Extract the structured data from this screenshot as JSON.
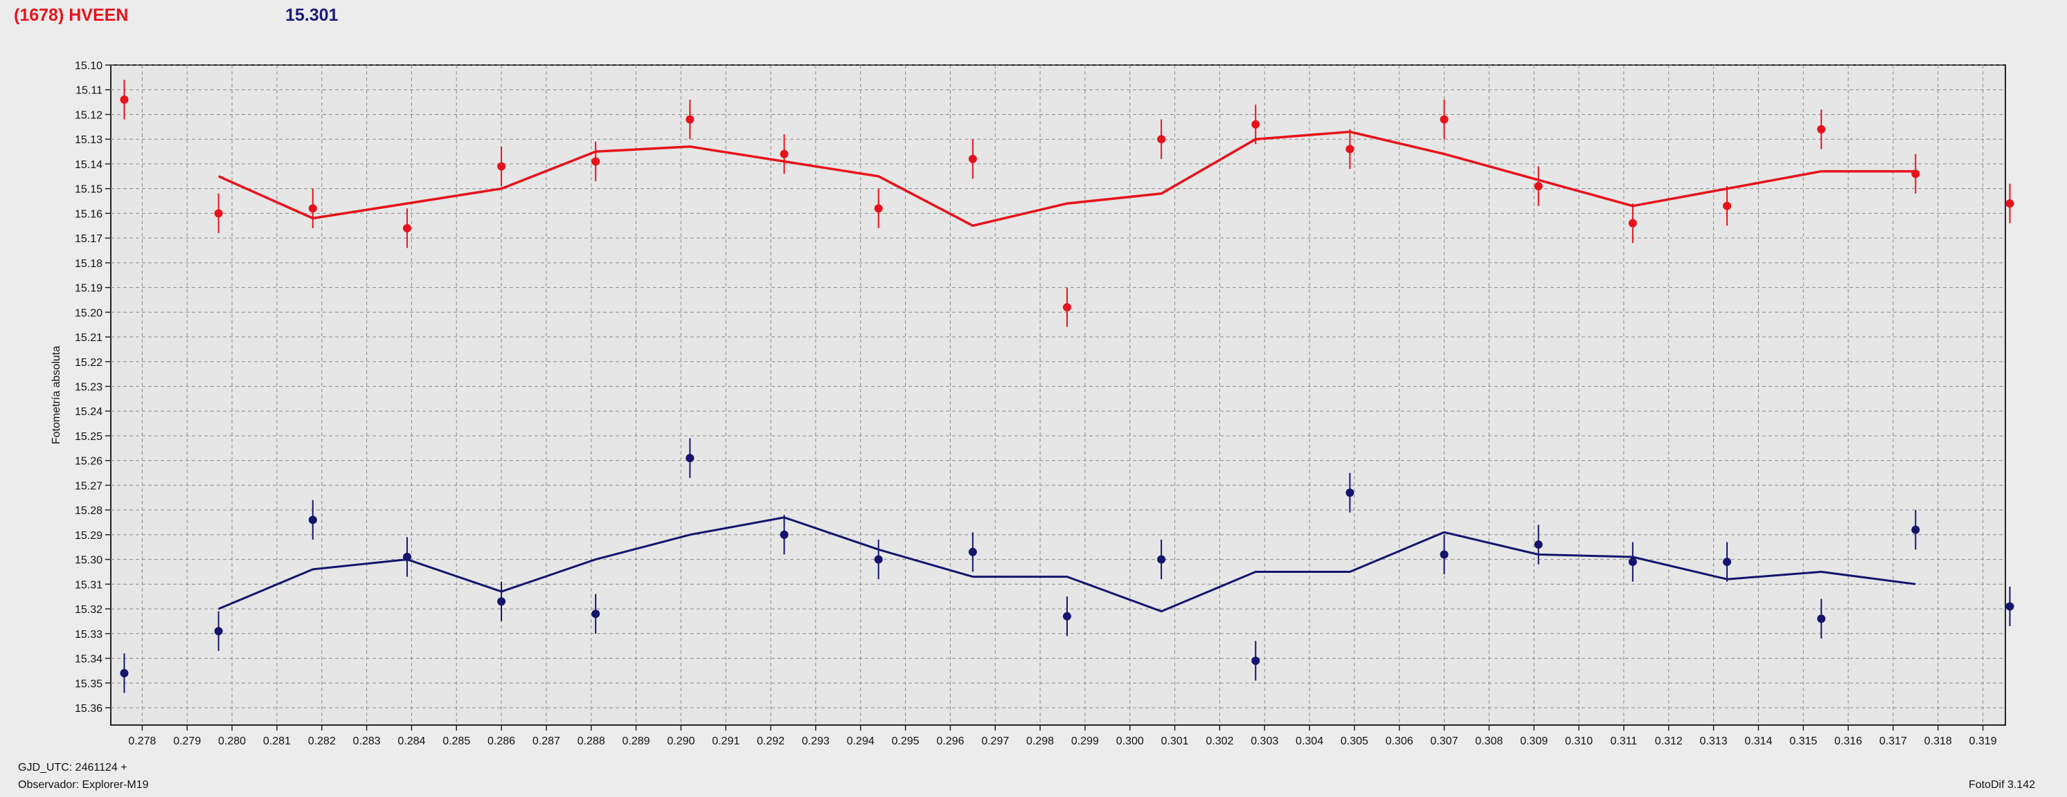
{
  "header": {
    "object_name": "(1678) HVEEN",
    "reference_mag": "15.301"
  },
  "footer": {
    "gjd_line": "GJD_UTC: 2461124 +",
    "observer_line": "Observador: Explorer-M19",
    "software": "FotoDif 3.142"
  },
  "colors": {
    "series_red": "#e8121b",
    "series_blue": "#14146e",
    "plot_bg": "#e6e6e6",
    "grid": "#8a8a8a"
  },
  "chart_data": {
    "type": "scatter",
    "ylabel": "Fotometría absoluta",
    "xlabel": "",
    "xlim": [
      0.2773,
      0.3195
    ],
    "ylim": [
      15.1,
      15.367
    ],
    "y_inverted": true,
    "grid": true,
    "x_ticks": [
      "0.278",
      "0.279",
      "0.280",
      "0.281",
      "0.282",
      "0.283",
      "0.284",
      "0.285",
      "0.286",
      "0.287",
      "0.288",
      "0.289",
      "0.290",
      "0.291",
      "0.292",
      "0.293",
      "0.294",
      "0.295",
      "0.296",
      "0.297",
      "0.298",
      "0.299",
      "0.300",
      "0.301",
      "0.302",
      "0.303",
      "0.304",
      "0.305",
      "0.306",
      "0.307",
      "0.308",
      "0.309",
      "0.310",
      "0.311",
      "0.312",
      "0.313",
      "0.314",
      "0.315",
      "0.316",
      "0.317",
      "0.318",
      "0.319"
    ],
    "y_ticks": [
      "15.10",
      "15.11",
      "15.12",
      "15.13",
      "15.14",
      "15.15",
      "15.16",
      "15.17",
      "15.18",
      "15.19",
      "15.20",
      "15.21",
      "15.22",
      "15.23",
      "15.24",
      "15.25",
      "15.26",
      "15.27",
      "15.28",
      "15.29",
      "15.30",
      "15.31",
      "15.32",
      "15.33",
      "15.34",
      "15.35",
      "15.36"
    ],
    "series": [
      {
        "color": "#e8121b",
        "points": [
          {
            "x": 0.2776,
            "y": 15.114,
            "err": 0.008
          },
          {
            "x": 0.2797,
            "y": 15.16,
            "err": 0.008
          },
          {
            "x": 0.2818,
            "y": 15.158,
            "err": 0.008
          },
          {
            "x": 0.2839,
            "y": 15.166,
            "err": 0.008
          },
          {
            "x": 0.286,
            "y": 15.141,
            "err": 0.008
          },
          {
            "x": 0.2881,
            "y": 15.139,
            "err": 0.008
          },
          {
            "x": 0.2902,
            "y": 15.122,
            "err": 0.008
          },
          {
            "x": 0.2923,
            "y": 15.136,
            "err": 0.008
          },
          {
            "x": 0.2944,
            "y": 15.158,
            "err": 0.008
          },
          {
            "x": 0.2965,
            "y": 15.138,
            "err": 0.008
          },
          {
            "x": 0.2986,
            "y": 15.198,
            "err": 0.008
          },
          {
            "x": 0.3007,
            "y": 15.13,
            "err": 0.008
          },
          {
            "x": 0.3028,
            "y": 15.124,
            "err": 0.008
          },
          {
            "x": 0.3049,
            "y": 15.134,
            "err": 0.008
          },
          {
            "x": 0.307,
            "y": 15.122,
            "err": 0.008
          },
          {
            "x": 0.3091,
            "y": 15.149,
            "err": 0.008
          },
          {
            "x": 0.3112,
            "y": 15.164,
            "err": 0.008
          },
          {
            "x": 0.3133,
            "y": 15.157,
            "err": 0.008
          },
          {
            "x": 0.3154,
            "y": 15.126,
            "err": 0.008
          },
          {
            "x": 0.3175,
            "y": 15.144,
            "err": 0.008
          },
          {
            "x": 0.3196,
            "y": 15.156,
            "err": 0.008
          }
        ],
        "line": [
          {
            "x": 0.2797,
            "y": 15.145
          },
          {
            "x": 0.2818,
            "y": 15.162
          },
          {
            "x": 0.286,
            "y": 15.15
          },
          {
            "x": 0.2881,
            "y": 15.135
          },
          {
            "x": 0.2902,
            "y": 15.133
          },
          {
            "x": 0.2944,
            "y": 15.145
          },
          {
            "x": 0.2965,
            "y": 15.165
          },
          {
            "x": 0.2986,
            "y": 15.156
          },
          {
            "x": 0.3007,
            "y": 15.152
          },
          {
            "x": 0.3028,
            "y": 15.13
          },
          {
            "x": 0.3049,
            "y": 15.127
          },
          {
            "x": 0.307,
            "y": 15.136
          },
          {
            "x": 0.3112,
            "y": 15.157
          },
          {
            "x": 0.3133,
            "y": 15.15
          },
          {
            "x": 0.3154,
            "y": 15.143
          },
          {
            "x": 0.3175,
            "y": 15.143
          }
        ]
      },
      {
        "color": "#14146e",
        "points": [
          {
            "x": 0.2776,
            "y": 15.346,
            "err": 0.008
          },
          {
            "x": 0.2797,
            "y": 15.329,
            "err": 0.008
          },
          {
            "x": 0.2818,
            "y": 15.284,
            "err": 0.008
          },
          {
            "x": 0.2839,
            "y": 15.299,
            "err": 0.008
          },
          {
            "x": 0.286,
            "y": 15.317,
            "err": 0.008
          },
          {
            "x": 0.2881,
            "y": 15.322,
            "err": 0.008
          },
          {
            "x": 0.2902,
            "y": 15.259,
            "err": 0.008
          },
          {
            "x": 0.2923,
            "y": 15.29,
            "err": 0.008
          },
          {
            "x": 0.2944,
            "y": 15.3,
            "err": 0.008
          },
          {
            "x": 0.2965,
            "y": 15.297,
            "err": 0.008
          },
          {
            "x": 0.2986,
            "y": 15.323,
            "err": 0.008
          },
          {
            "x": 0.3007,
            "y": 15.3,
            "err": 0.008
          },
          {
            "x": 0.3028,
            "y": 15.341,
            "err": 0.008
          },
          {
            "x": 0.3049,
            "y": 15.273,
            "err": 0.008
          },
          {
            "x": 0.307,
            "y": 15.298,
            "err": 0.008
          },
          {
            "x": 0.3091,
            "y": 15.294,
            "err": 0.008
          },
          {
            "x": 0.3112,
            "y": 15.301,
            "err": 0.008
          },
          {
            "x": 0.3133,
            "y": 15.301,
            "err": 0.008
          },
          {
            "x": 0.3154,
            "y": 15.324,
            "err": 0.008
          },
          {
            "x": 0.3175,
            "y": 15.288,
            "err": 0.008
          },
          {
            "x": 0.3196,
            "y": 15.319,
            "err": 0.008
          }
        ],
        "line": [
          {
            "x": 0.2797,
            "y": 15.32
          },
          {
            "x": 0.2818,
            "y": 15.304
          },
          {
            "x": 0.2839,
            "y": 15.3
          },
          {
            "x": 0.286,
            "y": 15.313
          },
          {
            "x": 0.2881,
            "y": 15.3
          },
          {
            "x": 0.2902,
            "y": 15.29
          },
          {
            "x": 0.2923,
            "y": 15.283
          },
          {
            "x": 0.2944,
            "y": 15.296
          },
          {
            "x": 0.2965,
            "y": 15.307
          },
          {
            "x": 0.2986,
            "y": 15.307
          },
          {
            "x": 0.3007,
            "y": 15.321
          },
          {
            "x": 0.3028,
            "y": 15.305
          },
          {
            "x": 0.3049,
            "y": 15.305
          },
          {
            "x": 0.307,
            "y": 15.289
          },
          {
            "x": 0.3091,
            "y": 15.298
          },
          {
            "x": 0.3112,
            "y": 15.299
          },
          {
            "x": 0.3133,
            "y": 15.308
          },
          {
            "x": 0.3154,
            "y": 15.305
          },
          {
            "x": 0.3175,
            "y": 15.31
          }
        ]
      }
    ]
  }
}
